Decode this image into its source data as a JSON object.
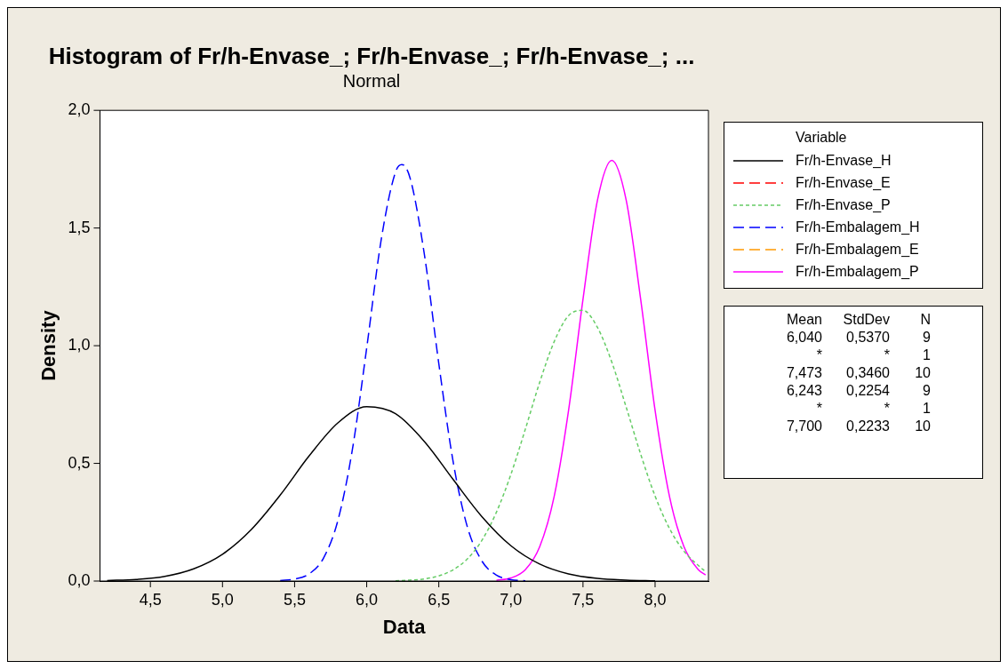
{
  "chart_data": {
    "type": "line",
    "title": "Histogram of Fr/h-Envase_; Fr/h-Envase_; Fr/h-Envase_; ...",
    "subtitle": "Normal",
    "xlabel": "Data",
    "ylabel": "Density",
    "legend_title": "Variable",
    "legend": "right",
    "marker": "none",
    "grid": false,
    "xlim": [
      4.15,
      8.37
    ],
    "xticks": [
      {
        "value": 4.5,
        "label": "4,5"
      },
      {
        "value": 5,
        "label": "5,0"
      },
      {
        "value": 5.5,
        "label": "5,5"
      },
      {
        "value": 6,
        "label": "6,0"
      },
      {
        "value": 6.5,
        "label": "6,5"
      },
      {
        "value": 7,
        "label": "7,0"
      },
      {
        "value": 7.5,
        "label": "7,5"
      },
      {
        "value": 8,
        "label": "8,0"
      }
    ],
    "ylim": [
      0,
      2
    ],
    "yticks": [
      {
        "value": 0,
        "label": "0,0"
      },
      {
        "value": 0.5,
        "label": "0,5"
      },
      {
        "value": 1,
        "label": "1,0"
      },
      {
        "value": 1.5,
        "label": "1,5"
      },
      {
        "value": 2,
        "label": "2,0"
      }
    ],
    "series": [
      {
        "name": "Fr/h-Envase_H",
        "color": "#000000",
        "line_style": "solid",
        "x": [
          4.2,
          4.4,
          4.6,
          4.8,
          5.0,
          5.2,
          5.4,
          5.6,
          5.8,
          6.0,
          6.2,
          6.4,
          6.6,
          6.8,
          7.0,
          7.2,
          7.4,
          7.6,
          7.8,
          8.0
        ],
        "values": [
          0.002,
          0.007,
          0.02,
          0.052,
          0.114,
          0.219,
          0.365,
          0.531,
          0.672,
          0.741,
          0.711,
          0.593,
          0.431,
          0.273,
          0.15,
          0.072,
          0.03,
          0.011,
          0.004,
          0.001
        ]
      },
      {
        "name": "Fr/h-Envase_E",
        "color": "#ff0000",
        "line_style": "dashed"
      },
      {
        "name": "Fr/h-Envase_P",
        "color": "#66cc66",
        "line_style": "dotted",
        "x": [
          6.2,
          6.3,
          6.4,
          6.5,
          6.6,
          6.7,
          6.8,
          6.9,
          7.0,
          7.1,
          7.2,
          7.3,
          7.4,
          7.5,
          7.6,
          7.7,
          7.8,
          7.9,
          8.0,
          8.1,
          8.2,
          8.3,
          8.35
        ],
        "values": [
          0.001,
          0.004,
          0.009,
          0.022,
          0.048,
          0.095,
          0.174,
          0.293,
          0.453,
          0.645,
          0.845,
          1.017,
          1.128,
          1.15,
          1.078,
          0.93,
          0.738,
          0.539,
          0.361,
          0.223,
          0.127,
          0.066,
          0.04
        ]
      },
      {
        "name": "Fr/h-Embalagem_H",
        "color": "#0000ff",
        "line_style": "dashed",
        "x": [
          5.4,
          5.5,
          5.6,
          5.7,
          5.8,
          5.9,
          6.0,
          6.1,
          6.2,
          6.243,
          6.3,
          6.4,
          6.5,
          6.6,
          6.7,
          6.8,
          6.9,
          7.0,
          7.1
        ],
        "values": [
          0.002,
          0.008,
          0.03,
          0.097,
          0.257,
          0.556,
          0.99,
          1.448,
          1.738,
          1.77,
          1.714,
          1.388,
          0.924,
          0.505,
          0.226,
          0.084,
          0.025,
          0.006,
          0.001
        ]
      },
      {
        "name": "Fr/h-Embalagem_E",
        "color": "#ff9900",
        "line_style": "dashed"
      },
      {
        "name": "Fr/h-Embalagem_P",
        "color": "#ff00ff",
        "line_style": "solid",
        "x": [
          6.9,
          7.0,
          7.1,
          7.2,
          7.3,
          7.4,
          7.5,
          7.6,
          7.7,
          7.8,
          7.9,
          8.0,
          8.1,
          8.2,
          8.3,
          8.35
        ],
        "values": [
          0.003,
          0.013,
          0.048,
          0.146,
          0.359,
          0.725,
          1.197,
          1.617,
          1.787,
          1.617,
          1.197,
          0.725,
          0.359,
          0.146,
          0.048,
          0.026
        ]
      }
    ],
    "annotations": [
      "Mean",
      "StdDev",
      "N",
      "6,040",
      "0,5370",
      "9",
      "*",
      "*",
      "1",
      "7,473",
      "0,3460",
      "10",
      "6,243",
      "0,2254",
      "9",
      "*",
      "*",
      "1",
      "7,700",
      "0,2233",
      "10"
    ]
  }
}
